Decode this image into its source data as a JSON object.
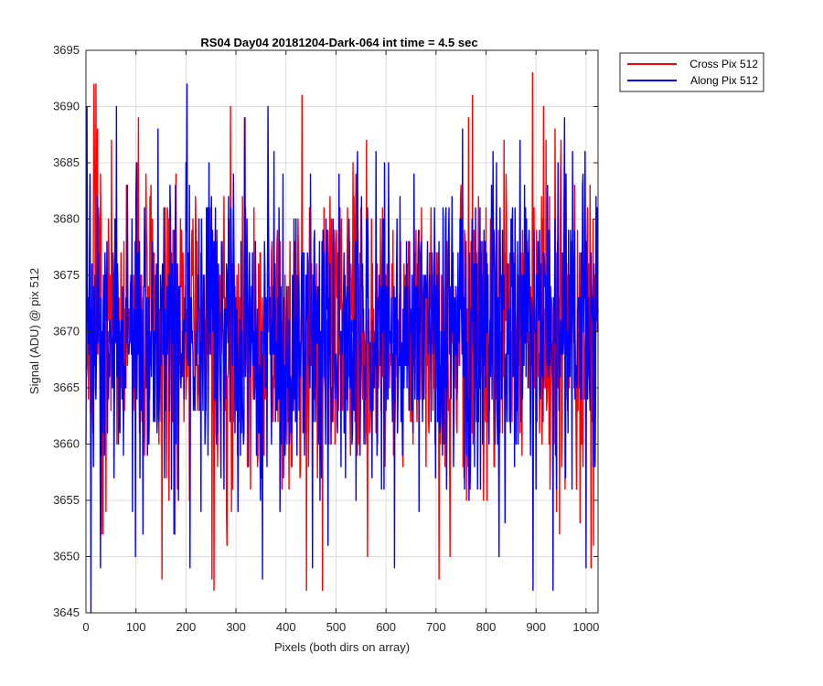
{
  "chart_data": {
    "type": "line",
    "title": "RS04 Day04 20181204-Dark-064 int time = 4.5 sec",
    "xlabel": "Pixels (both dirs on array)",
    "ylabel": "Signal (ADU) @ pix 512",
    "xlim": [
      0,
      1024
    ],
    "ylim": [
      3645,
      3695
    ],
    "xticks": [
      0,
      100,
      200,
      300,
      400,
      500,
      600,
      700,
      800,
      900,
      1000
    ],
    "yticks": [
      3645,
      3650,
      3655,
      3660,
      3665,
      3670,
      3675,
      3680,
      3685,
      3690,
      3695
    ],
    "grid": true,
    "legend_position": "outside top-right",
    "series": [
      {
        "name": "Cross Pix 512",
        "color": "#ff0000",
        "noise_seed": 7,
        "mean": 3670,
        "std": 6.5,
        "highlights": [
          {
            "x": 16,
            "y": 3692
          },
          {
            "x": 20,
            "y": 3692
          },
          {
            "x": 23,
            "y": 3688
          },
          {
            "x": 31,
            "y": 3652
          },
          {
            "x": 40,
            "y": 3654
          },
          {
            "x": 102,
            "y": 3685
          },
          {
            "x": 105,
            "y": 3689
          },
          {
            "x": 152,
            "y": 3648
          },
          {
            "x": 178,
            "y": 3652
          },
          {
            "x": 252,
            "y": 3648
          },
          {
            "x": 256,
            "y": 3647
          },
          {
            "x": 282,
            "y": 3651
          },
          {
            "x": 289,
            "y": 3690
          },
          {
            "x": 317,
            "y": 3689
          },
          {
            "x": 432,
            "y": 3691
          },
          {
            "x": 441,
            "y": 3647
          },
          {
            "x": 473,
            "y": 3647
          },
          {
            "x": 561,
            "y": 3687
          },
          {
            "x": 563,
            "y": 3650
          },
          {
            "x": 706,
            "y": 3648
          },
          {
            "x": 765,
            "y": 3689
          },
          {
            "x": 773,
            "y": 3691
          },
          {
            "x": 802,
            "y": 3655
          },
          {
            "x": 893,
            "y": 3693
          },
          {
            "x": 915,
            "y": 3690
          },
          {
            "x": 938,
            "y": 3688
          },
          {
            "x": 950,
            "y": 3687
          },
          {
            "x": 1010,
            "y": 3649
          },
          {
            "x": 1015,
            "y": 3651
          }
        ]
      },
      {
        "name": "Along Pix 512",
        "color": "#0000ff",
        "noise_seed": 23,
        "mean": 3670,
        "std": 6.5,
        "highlights": [
          {
            "x": 2,
            "y": 3690
          },
          {
            "x": 10,
            "y": 3645
          },
          {
            "x": 29,
            "y": 3649
          },
          {
            "x": 61,
            "y": 3690
          },
          {
            "x": 99,
            "y": 3650
          },
          {
            "x": 144,
            "y": 3688
          },
          {
            "x": 176,
            "y": 3652
          },
          {
            "x": 202,
            "y": 3692
          },
          {
            "x": 208,
            "y": 3649
          },
          {
            "x": 304,
            "y": 3654
          },
          {
            "x": 318,
            "y": 3689
          },
          {
            "x": 353,
            "y": 3648
          },
          {
            "x": 364,
            "y": 3690
          },
          {
            "x": 453,
            "y": 3649
          },
          {
            "x": 519,
            "y": 3657
          },
          {
            "x": 580,
            "y": 3686
          },
          {
            "x": 617,
            "y": 3649
          },
          {
            "x": 826,
            "y": 3650
          },
          {
            "x": 868,
            "y": 3687
          },
          {
            "x": 894,
            "y": 3647
          },
          {
            "x": 934,
            "y": 3647
          },
          {
            "x": 957,
            "y": 3689
          },
          {
            "x": 1000,
            "y": 3649
          }
        ]
      }
    ]
  }
}
